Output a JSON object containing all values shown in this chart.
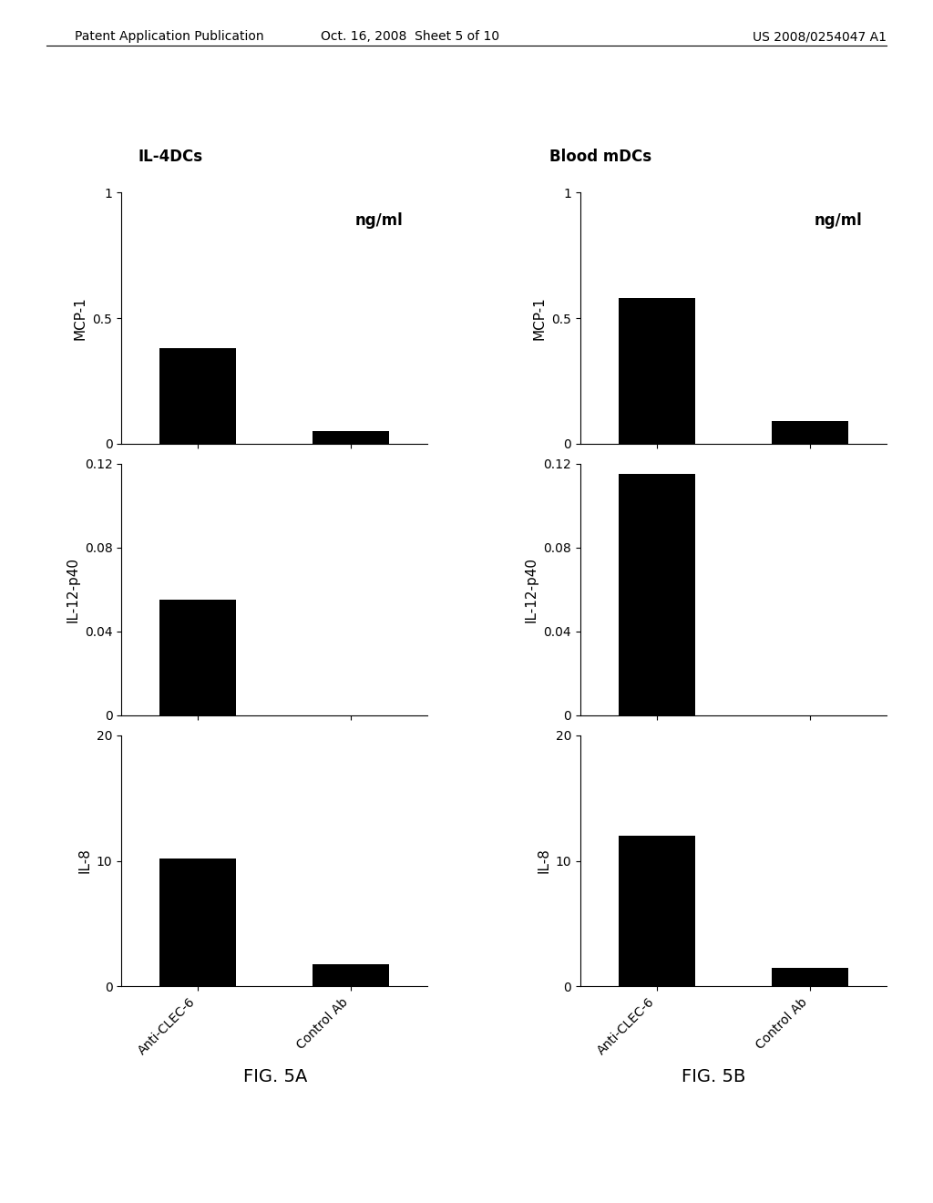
{
  "fig5A_title": "IL-4DCs",
  "fig5B_title": "Blood mDCs",
  "fig5A_label": "FIG. 5A",
  "fig5B_label": "FIG. 5B",
  "categories": [
    "Anti-CLEC-6",
    "Control Ab"
  ],
  "fig5A": {
    "MCP1": [
      0.38,
      0.05
    ],
    "IL12p40": [
      0.055,
      0.0
    ],
    "IL8": [
      10.2,
      1.8
    ]
  },
  "fig5B": {
    "MCP1": [
      0.58,
      0.09
    ],
    "IL12p40": [
      0.115,
      0.0
    ],
    "IL8": [
      12.0,
      1.5
    ]
  },
  "MCP1_ylim": [
    0,
    1
  ],
  "MCP1_yticks": [
    0,
    0.5,
    1
  ],
  "IL12p40_ylim": [
    0,
    0.12
  ],
  "IL12p40_yticks": [
    0,
    0.04,
    0.08,
    0.12
  ],
  "IL8_ylim": [
    0,
    20
  ],
  "IL8_yticks": [
    0,
    10,
    20
  ],
  "ylabel_MCP1": "MCP-1",
  "ylabel_IL12p40": "IL-12-p40",
  "ylabel_IL8": "IL-8",
  "annotation_MCP1": "ng/ml",
  "bar_color": "#000000",
  "bar_width": 0.5,
  "header_left": "Patent Application Publication",
  "header_center": "Oct. 16, 2008  Sheet 5 of 10",
  "header_right": "US 2008/0254047 A1",
  "font_size_header": 10,
  "font_size_title": 12,
  "font_size_label": 11,
  "font_size_tick": 10,
  "font_size_annotation": 12,
  "font_size_fig_label": 14
}
